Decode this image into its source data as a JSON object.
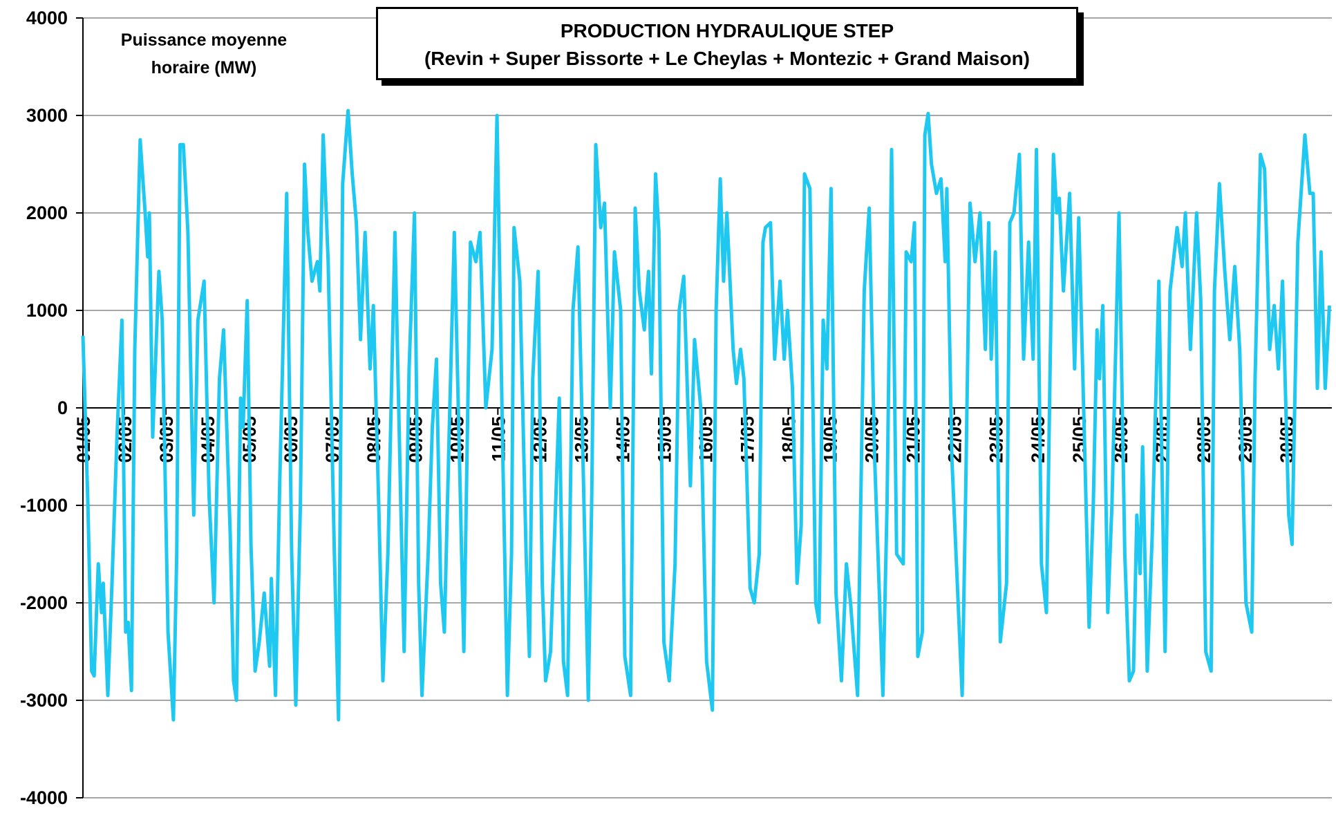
{
  "chart_data": {
    "type": "line",
    "title": "PRODUCTION HYDRAULIQUE STEP",
    "subtitle": "(Revin + Super Bissorte + Le Cheylas + Montezic + Grand Maison)",
    "annotation": "Puissance moyenne horaire (MW)",
    "color": "#1ec8f0",
    "grid": true,
    "xlim": [
      0,
      30.1
    ],
    "ylim": [
      -4000,
      4000
    ],
    "yticks": [
      -4000,
      -3000,
      -2000,
      -1000,
      0,
      1000,
      2000,
      3000,
      4000
    ],
    "xticks": [
      {
        "value": 0,
        "label": "01/05"
      },
      {
        "value": 1,
        "label": "02/05"
      },
      {
        "value": 2,
        "label": "03/05"
      },
      {
        "value": 3,
        "label": "04/05"
      },
      {
        "value": 4,
        "label": "05/05"
      },
      {
        "value": 5,
        "label": "06/05"
      },
      {
        "value": 6,
        "label": "07/05"
      },
      {
        "value": 7,
        "label": "08/05"
      },
      {
        "value": 8,
        "label": "09/05"
      },
      {
        "value": 9,
        "label": "10/05"
      },
      {
        "value": 10,
        "label": "11/05"
      },
      {
        "value": 11,
        "label": "12/05"
      },
      {
        "value": 12,
        "label": "13/05"
      },
      {
        "value": 13,
        "label": "14/05"
      },
      {
        "value": 14,
        "label": "15/05"
      },
      {
        "value": 15,
        "label": "16/05"
      },
      {
        "value": 16,
        "label": "17/05"
      },
      {
        "value": 17,
        "label": "18/05"
      },
      {
        "value": 18,
        "label": "19/05"
      },
      {
        "value": 19,
        "label": "20/05"
      },
      {
        "value": 20,
        "label": "21/05"
      },
      {
        "value": 21,
        "label": "22/05"
      },
      {
        "value": 22,
        "label": "23/05"
      },
      {
        "value": 23,
        "label": "24/05"
      },
      {
        "value": 24,
        "label": "25/05"
      },
      {
        "value": 25,
        "label": "26/05"
      },
      {
        "value": 26,
        "label": "27/05"
      },
      {
        "value": 27,
        "label": "28/05"
      },
      {
        "value": 28,
        "label": "29/05"
      },
      {
        "value": 29,
        "label": "30/05"
      }
    ],
    "x": [
      0,
      0.12,
      0.21,
      0.27,
      0.37,
      0.45,
      0.49,
      0.6,
      0.7,
      0.82,
      0.94,
      1.03,
      1.09,
      1.17,
      1.25,
      1.38,
      1.5,
      1.56,
      1.6,
      1.68,
      1.83,
      1.91,
      2.05,
      2.18,
      2.26,
      2.34,
      2.42,
      2.53,
      2.67,
      2.77,
      2.92,
      3.04,
      3.16,
      3.29,
      3.39,
      3.55,
      3.63,
      3.7,
      3.8,
      3.86,
      3.96,
      4.05,
      4.15,
      4.25,
      4.37,
      4.5,
      4.54,
      4.64,
      4.74,
      4.91,
      5.03,
      5.13,
      5.24,
      5.34,
      5.42,
      5.52,
      5.65,
      5.71,
      5.79,
      5.91,
      6.06,
      6.16,
      6.26,
      6.39,
      6.49,
      6.59,
      6.69,
      6.8,
      6.92,
      7,
      7.13,
      7.23,
      7.35,
      7.52,
      7.66,
      7.74,
      7.86,
      7.99,
      8.09,
      8.17,
      8.32,
      8.42,
      8.52,
      8.62,
      8.71,
      8.83,
      8.95,
      9.1,
      9.18,
      9.34,
      9.47,
      9.57,
      9.71,
      9.86,
      9.98,
      10.12,
      10.23,
      10.33,
      10.39,
      10.53,
      10.68,
      10.76,
      10.84,
      10.97,
      11.07,
      11.15,
      11.27,
      11.48,
      11.58,
      11.68,
      11.81,
      11.93,
      12.05,
      12.18,
      12.26,
      12.36,
      12.48,
      12.57,
      12.71,
      12.81,
      12.96,
      13.06,
      13.2,
      13.31,
      13.41,
      13.53,
      13.63,
      13.7,
      13.8,
      13.88,
      14,
      14.13,
      14.27,
      14.37,
      14.48,
      14.64,
      14.74,
      14.89,
      15.03,
      15.17,
      15.26,
      15.36,
      15.44,
      15.52,
      15.67,
      15.75,
      15.85,
      15.93,
      16.08,
      16.18,
      16.3,
      16.39,
      16.45,
      16.57,
      16.67,
      16.8,
      16.9,
      16.98,
      17.1,
      17.21,
      17.31,
      17.39,
      17.52,
      17.66,
      17.74,
      17.84,
      17.93,
      18.03,
      18.15,
      18.28,
      18.4,
      18.5,
      18.67,
      18.83,
      18.95,
      19.08,
      19.28,
      19.38,
      19.49,
      19.61,
      19.77,
      19.84,
      19.96,
      20.04,
      20.12,
      20.23,
      20.29,
      20.37,
      20.45,
      20.57,
      20.68,
      20.78,
      20.82,
      20.94,
      21.19,
      21.27,
      21.38,
      21.5,
      21.62,
      21.75,
      21.83,
      21.89,
      21.99,
      22.11,
      22.26,
      22.34,
      22.44,
      22.57,
      22.67,
      22.79,
      22.9,
      22.98,
      23.1,
      23.22,
      23.33,
      23.39,
      23.47,
      23.53,
      23.63,
      23.78,
      23.9,
      24,
      24.13,
      24.25,
      24.35,
      24.44,
      24.5,
      24.58,
      24.7,
      24.8,
      24.97,
      25.11,
      25.22,
      25.32,
      25.4,
      25.48,
      25.54,
      25.65,
      25.77,
      25.93,
      26.08,
      26.2,
      26.37,
      26.49,
      26.57,
      26.69,
      26.84,
      26.94,
      27.06,
      27.19,
      27.27,
      27.39,
      27.52,
      27.64,
      27.76,
      27.88,
      28.03,
      28.17,
      28.25,
      28.38,
      28.48,
      28.6,
      28.71,
      28.81,
      28.91,
      29.06,
      29.14,
      29.28,
      29.45,
      29.57,
      29.65,
      29.75,
      29.84,
      29.94,
      30.04
    ],
    "values": [
      740,
      -1000,
      -2700,
      -2750,
      -1600,
      -2100,
      -1800,
      -2950,
      -1800,
      -300,
      900,
      -2300,
      -2200,
      -2900,
      600,
      2750,
      2000,
      1550,
      2000,
      -300,
      1400,
      900,
      -2300,
      -3200,
      -1500,
      2700,
      2700,
      1800,
      -1100,
      900,
      1300,
      -900,
      -2000,
      300,
      800,
      -1300,
      -2800,
      -3000,
      100,
      -200,
      1100,
      -1400,
      -2700,
      -2400,
      -1900,
      -2650,
      -1750,
      -2950,
      -800,
      2200,
      -1500,
      -3050,
      -1000,
      2500,
      1800,
      1300,
      1500,
      1200,
      2800,
      1500,
      -1500,
      -3200,
      2300,
      3050,
      2400,
      1900,
      700,
      1800,
      400,
      1050,
      -1000,
      -2800,
      -1500,
      1800,
      -1000,
      -2500,
      400,
      2000,
      -1800,
      -2950,
      -1500,
      -200,
      500,
      -1800,
      -2300,
      -200,
      1800,
      -1000,
      -2500,
      1700,
      1500,
      1800,
      0,
      600,
      3000,
      -500,
      -2950,
      -1500,
      1850,
      1300,
      -1500,
      -2550,
      300,
      1400,
      -1800,
      -2800,
      -2500,
      100,
      -2600,
      -2950,
      1000,
      1650,
      -500,
      -3000,
      -1000,
      2700,
      1850,
      2100,
      0,
      1600,
      1000,
      -2550,
      -2950,
      2050,
      1200,
      800,
      1400,
      350,
      2400,
      1800,
      -2400,
      -2800,
      -1600,
      1000,
      1350,
      -800,
      700,
      0,
      -2600,
      -3100,
      1000,
      2350,
      1300,
      2000,
      600,
      250,
      600,
      300,
      -1850,
      -2000,
      -1500,
      1700,
      1850,
      1900,
      500,
      1300,
      500,
      1000,
      200,
      -1800,
      -1200,
      2400,
      2250,
      -2000,
      -2200,
      900,
      400,
      2250,
      -1900,
      -2800,
      -1600,
      -2000,
      -2950,
      1200,
      2050,
      -500,
      -2950,
      -1000,
      2650,
      -1500,
      -1600,
      1600,
      1500,
      1900,
      -2550,
      -2300,
      2800,
      3020,
      2500,
      2200,
      2350,
      1500,
      2250,
      -500,
      -2950,
      -1000,
      2100,
      1500,
      2000,
      600,
      1900,
      500,
      1600,
      -2400,
      -1800,
      1900,
      2000,
      2600,
      500,
      1700,
      500,
      2650,
      -1600,
      -2100,
      1000,
      2600,
      2000,
      2150,
      1200,
      2200,
      400,
      1950,
      -200,
      -2250,
      -1000,
      800,
      300,
      1050,
      -2100,
      -1000,
      2000,
      -1500,
      -2800,
      -2700,
      -1100,
      -1700,
      -400,
      -2700,
      -1300,
      1300,
      -2500,
      1200,
      1850,
      1450,
      2000,
      600,
      2000,
      1100,
      -2500,
      -2700,
      1200,
      2300,
      1400,
      700,
      1450,
      600,
      -2000,
      -2300,
      300,
      2600,
      2450,
      600,
      1050,
      400,
      1300,
      -1100,
      -1400,
      1700,
      2800,
      2200,
      2200,
      200,
      1600,
      200,
      1050
    ]
  }
}
